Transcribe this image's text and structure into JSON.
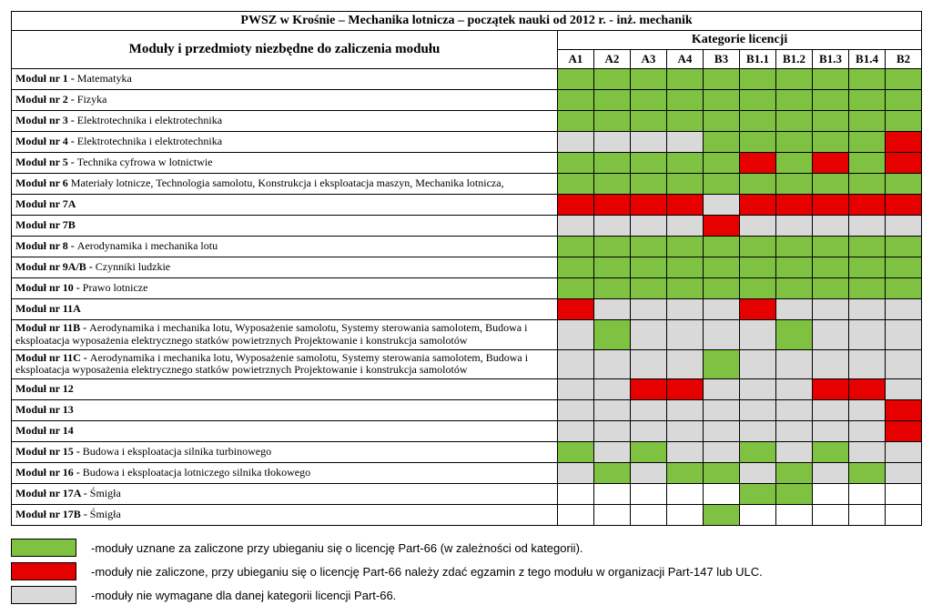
{
  "title": "PWSZ w Krośnie – Mechanika lotnicza – początek nauki od 2012 r. - inż. mechanik",
  "modulesHeader": "Moduły i przedmioty niezbędne do zaliczenia modułu",
  "categoriesHeader": "Kategorie licencji",
  "categories": [
    "A1",
    "A2",
    "A3",
    "A4",
    "B3",
    "B1.1",
    "B1.2",
    "B1.3",
    "B1.4",
    "B2"
  ],
  "colors": {
    "G": "#7fc241",
    "R": "#e60000",
    "E": "#d9d9d9",
    "W": "#ffffff"
  },
  "rows": [
    {
      "prefix": "Moduł nr 1  - ",
      "rest": "Matematyka",
      "cells": [
        "G",
        "G",
        "G",
        "G",
        "G",
        "G",
        "G",
        "G",
        "G",
        "G"
      ]
    },
    {
      "prefix": "Moduł nr 2  - ",
      "rest": "Fizyka",
      "cells": [
        "G",
        "G",
        "G",
        "G",
        "G",
        "G",
        "G",
        "G",
        "G",
        "G"
      ]
    },
    {
      "prefix": "Moduł nr 3  - ",
      "rest": "Elektrotechnika i elektrotechnika",
      "cells": [
        "G",
        "G",
        "G",
        "G",
        "G",
        "G",
        "G",
        "G",
        "G",
        "G"
      ]
    },
    {
      "prefix": "Moduł nr 4  - ",
      "rest": "Elektrotechnika i elektrotechnika",
      "cells": [
        "E",
        "E",
        "E",
        "E",
        "G",
        "G",
        "G",
        "G",
        "G",
        "R"
      ]
    },
    {
      "prefix": "Moduł nr 5  - ",
      "rest": "Technika cyfrowa w lotnictwie",
      "cells": [
        "G",
        "G",
        "G",
        "G",
        "G",
        "R",
        "G",
        "R",
        "G",
        "R"
      ]
    },
    {
      "prefix": "Moduł nr 6  ",
      "rest": "Materiały lotnicze, Technologia samolotu, Konstrukcja i eksploatacja maszyn, Mechanika lotnicza,",
      "cells": [
        "G",
        "G",
        "G",
        "G",
        "G",
        "G",
        "G",
        "G",
        "G",
        "G"
      ]
    },
    {
      "prefix": "Moduł nr 7A",
      "rest": "",
      "cells": [
        "R",
        "R",
        "R",
        "R",
        "E",
        "R",
        "R",
        "R",
        "R",
        "R"
      ]
    },
    {
      "prefix": "Moduł nr 7B",
      "rest": "",
      "cells": [
        "E",
        "E",
        "E",
        "E",
        "R",
        "E",
        "E",
        "E",
        "E",
        "E"
      ]
    },
    {
      "prefix": "Moduł nr 8  - ",
      "rest": "Aerodynamika i mechanika lotu",
      "cells": [
        "G",
        "G",
        "G",
        "G",
        "G",
        "G",
        "G",
        "G",
        "G",
        "G"
      ]
    },
    {
      "prefix": "Moduł nr 9A/B  - ",
      "rest": "Czynniki ludzkie",
      "cells": [
        "G",
        "G",
        "G",
        "G",
        "G",
        "G",
        "G",
        "G",
        "G",
        "G"
      ]
    },
    {
      "prefix": "Moduł nr 10  - ",
      "rest": "Prawo lotnicze",
      "cells": [
        "G",
        "G",
        "G",
        "G",
        "G",
        "G",
        "G",
        "G",
        "G",
        "G"
      ]
    },
    {
      "prefix": "Moduł nr 11A",
      "rest": "",
      "cells": [
        "R",
        "E",
        "E",
        "E",
        "E",
        "R",
        "E",
        "E",
        "E",
        "E"
      ]
    },
    {
      "prefix": "Moduł nr 11B - ",
      "rest": "Aerodynamika i mechanika lotu, Wyposażenie samolotu, Systemy sterowania samolotem, Budowa i eksploatacja wyposażenia elektrycznego statków powietrznych Projektowanie i konstrukcja samolotów",
      "cells": [
        "E",
        "G",
        "E",
        "E",
        "E",
        "E",
        "G",
        "E",
        "E",
        "E"
      ]
    },
    {
      "prefix": "Moduł nr 11C - ",
      "rest": "Aerodynamika i mechanika lotu, Wyposażenie samolotu, Systemy sterowania samolotem, Budowa i eksploatacja wyposażenia elektrycznego statków powietrznych Projektowanie i konstrukcja samolotów",
      "cells": [
        "E",
        "E",
        "E",
        "E",
        "G",
        "E",
        "E",
        "E",
        "E",
        "E"
      ]
    },
    {
      "prefix": "Moduł nr 12",
      "rest": "",
      "cells": [
        "E",
        "E",
        "R",
        "R",
        "E",
        "E",
        "E",
        "R",
        "R",
        "E"
      ]
    },
    {
      "prefix": "Moduł nr 13",
      "rest": "",
      "cells": [
        "E",
        "E",
        "E",
        "E",
        "E",
        "E",
        "E",
        "E",
        "E",
        "R"
      ]
    },
    {
      "prefix": "Moduł nr 14",
      "rest": "",
      "cells": [
        "E",
        "E",
        "E",
        "E",
        "E",
        "E",
        "E",
        "E",
        "E",
        "R"
      ]
    },
    {
      "prefix": "Moduł nr 15 - ",
      "rest": "Budowa i eksploatacja silnika turbinowego",
      "cells": [
        "G",
        "E",
        "G",
        "E",
        "E",
        "G",
        "E",
        "G",
        "E",
        "E"
      ]
    },
    {
      "prefix": "Moduł nr 16  - ",
      "rest": "Budowa i eksploatacja lotniczego silnika tłokowego",
      "cells": [
        "E",
        "G",
        "E",
        "G",
        "G",
        "E",
        "G",
        "E",
        "G",
        "E"
      ]
    },
    {
      "prefix": "Moduł nr 17A  - ",
      "rest": "Śmigła",
      "cells": [
        "W",
        "W",
        "W",
        "W",
        "W",
        "G",
        "G",
        "W",
        "W",
        "W"
      ]
    },
    {
      "prefix": "Moduł nr 17B  - ",
      "rest": "Śmigła",
      "cells": [
        "W",
        "W",
        "W",
        "W",
        "G",
        "W",
        "W",
        "W",
        "W",
        "W"
      ]
    }
  ],
  "legend": [
    {
      "color": "G",
      "text": "moduły uznane za zaliczone przy ubieganiu się o licencję Part-66 (w zależności od kategorii)."
    },
    {
      "color": "R",
      "text": "moduły nie zaliczone, przy ubieganiu się o licencję Part-66 należy zdać egzamin z tego modułu w organizacji Part-147 lub ULC."
    },
    {
      "color": "E",
      "text": "moduły nie wymagane dla danej kategorii licencji Part-66."
    }
  ],
  "legendDash": " -  "
}
